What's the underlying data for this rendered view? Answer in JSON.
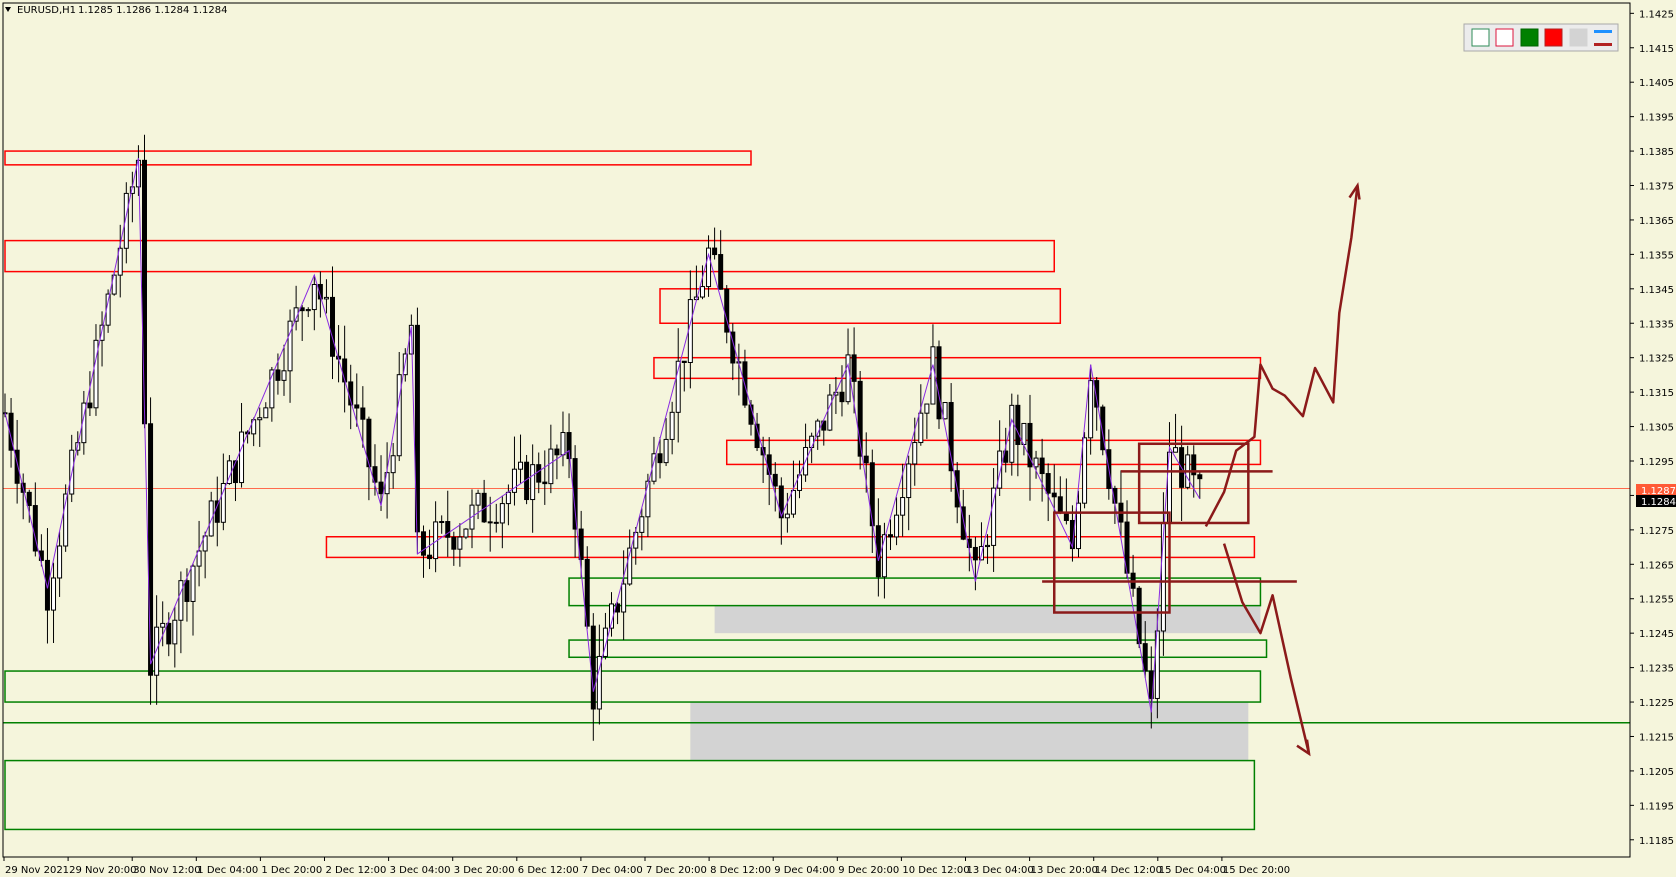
{
  "header": {
    "symbol": "EURUSD,H1",
    "ohlc": "1.1285 1.1286 1.1284 1.1284"
  },
  "price_tags": {
    "bid_line_label": "1.1287",
    "last_price_label": "1.1284"
  },
  "toolbar": {
    "icons": [
      "bull-candle-outline-icon",
      "bear-candle-outline-icon",
      "bull-candle-filled-icon",
      "bear-candle-filled-icon",
      "blank-swatch-icon",
      "line-style-icon"
    ]
  },
  "colors": {
    "background": "#f5f5dc",
    "bull": "#000000",
    "bear": "#000000",
    "zigzag": "#8a2be2",
    "resistance": "#ff0000",
    "support": "#008000",
    "gap_fill": "#d3d3d3",
    "forecast": "#8b1a1a",
    "bid_line": "#ff6a4d"
  },
  "chart_data": {
    "type": "candlestick",
    "timeframe": "H1",
    "yrange": [
      1.118,
      1.1428
    ],
    "y_ticks": [
      "1.1425",
      "1.1415",
      "1.1405",
      "1.1395",
      "1.1385",
      "1.1375",
      "1.1365",
      "1.1355",
      "1.1345",
      "1.1335",
      "1.1325",
      "1.1315",
      "1.1305",
      "1.1295",
      "1.1285",
      "1.1275",
      "1.1265",
      "1.1255",
      "1.1245",
      "1.1235",
      "1.1225",
      "1.1215",
      "1.1205",
      "1.1195",
      "1.1185"
    ],
    "x_ticks": [
      "29 Nov 2021",
      "29 Nov 20:00",
      "30 Nov 12:00",
      "1 Dec 04:00",
      "1 Dec 20:00",
      "2 Dec 12:00",
      "3 Dec 04:00",
      "3 Dec 20:00",
      "6 Dec 12:00",
      "7 Dec 04:00",
      "7 Dec 20:00",
      "8 Dec 12:00",
      "9 Dec 04:00",
      "9 Dec 20:00",
      "10 Dec 12:00",
      "13 Dec 04:00",
      "13 Dec 20:00",
      "14 Dec 12:00",
      "15 Dec 04:00",
      "15 Dec 20:00"
    ],
    "bars_visible": 198,
    "zigzag_pivots": [
      {
        "bar": 0,
        "price": 1.1309
      },
      {
        "bar": 7,
        "price": 1.1258
      },
      {
        "bar": 22,
        "price": 1.1383
      },
      {
        "bar": 24,
        "price": 1.1236
      },
      {
        "bar": 51,
        "price": 1.1349
      },
      {
        "bar": 62,
        "price": 1.1282
      },
      {
        "bar": 67,
        "price": 1.1334
      },
      {
        "bar": 68,
        "price": 1.1268
      },
      {
        "bar": 93,
        "price": 1.1298
      },
      {
        "bar": 97,
        "price": 1.1228
      },
      {
        "bar": 116,
        "price": 1.1355
      },
      {
        "bar": 128,
        "price": 1.1279
      },
      {
        "bar": 139,
        "price": 1.1323
      },
      {
        "bar": 144,
        "price": 1.1266
      },
      {
        "bar": 153,
        "price": 1.1323
      },
      {
        "bar": 160,
        "price": 1.126
      },
      {
        "bar": 166,
        "price": 1.1307
      },
      {
        "bar": 176,
        "price": 1.127
      },
      {
        "bar": 179,
        "price": 1.1323
      },
      {
        "bar": 189,
        "price": 1.1222
      },
      {
        "bar": 192,
        "price": 1.1299
      },
      {
        "bar": 197,
        "price": 1.1284
      }
    ],
    "resistance_zones": [
      {
        "from_bar": 0,
        "to_bar": 123,
        "top": 1.1385,
        "bottom": 1.1381
      },
      {
        "from_bar": 0,
        "to_bar": 173,
        "top": 1.1359,
        "bottom": 1.135
      },
      {
        "from_bar": 108,
        "to_bar": 174,
        "top": 1.1345,
        "bottom": 1.1335
      },
      {
        "from_bar": 107,
        "to_bar": 207,
        "top": 1.1325,
        "bottom": 1.1319
      },
      {
        "from_bar": 119,
        "to_bar": 207,
        "top": 1.1301,
        "bottom": 1.1294
      },
      {
        "from_bar": 53,
        "to_bar": 206,
        "top": 1.1273,
        "bottom": 1.1267
      }
    ],
    "support_zones": [
      {
        "from_bar": 93,
        "to_bar": 207,
        "top": 1.1261,
        "bottom": 1.1253
      },
      {
        "from_bar": 93,
        "to_bar": 208,
        "top": 1.1243,
        "bottom": 1.1238
      },
      {
        "from_bar": 0,
        "to_bar": 207,
        "top": 1.1234,
        "bottom": 1.1225
      },
      {
        "from_bar": 0,
        "to_bar": 206,
        "top": 1.1208,
        "bottom": 1.1188
      }
    ],
    "gap_fills": [
      {
        "from_bar": 117,
        "to_bar": 207,
        "top": 1.1253,
        "bottom": 1.1245
      },
      {
        "from_bar": 113,
        "to_bar": 205,
        "top": 1.1225,
        "bottom": 1.1208
      }
    ],
    "horizontal_lines": [
      {
        "price": 1.1219,
        "color": "support"
      },
      {
        "price": 1.1287,
        "color": "bid"
      }
    ],
    "forecast_boxes": [
      {
        "from_bar": 173,
        "to_bar": 192,
        "top": 1.128,
        "bottom": 1.1251
      },
      {
        "from_bar": 187,
        "to_bar": 205,
        "top": 1.13,
        "bottom": 1.1277
      }
    ],
    "forecast_lines": [
      {
        "from_bar": 171,
        "to_bar": 213,
        "price": 1.126
      },
      {
        "from_bar": 184,
        "to_bar": 209,
        "price": 1.1292
      }
    ],
    "forecast_up_path": [
      {
        "bar": 198,
        "price": 1.1276
      },
      {
        "bar": 201,
        "price": 1.1286
      },
      {
        "bar": 203,
        "price": 1.1298
      },
      {
        "bar": 206,
        "price": 1.1302
      },
      {
        "bar": 207,
        "price": 1.1323
      },
      {
        "bar": 209,
        "price": 1.1316
      },
      {
        "bar": 211,
        "price": 1.1314
      },
      {
        "bar": 214,
        "price": 1.1308
      },
      {
        "bar": 216,
        "price": 1.1322
      },
      {
        "bar": 219,
        "price": 1.1312
      },
      {
        "bar": 220,
        "price": 1.1338
      },
      {
        "bar": 222,
        "price": 1.136
      },
      {
        "bar": 223,
        "price": 1.1375
      }
    ],
    "forecast_down_path": [
      {
        "bar": 201,
        "price": 1.1271
      },
      {
        "bar": 204,
        "price": 1.1254
      },
      {
        "bar": 207,
        "price": 1.1245
      },
      {
        "bar": 209,
        "price": 1.1256
      },
      {
        "bar": 212,
        "price": 1.1232
      },
      {
        "bar": 215,
        "price": 1.121
      }
    ]
  }
}
